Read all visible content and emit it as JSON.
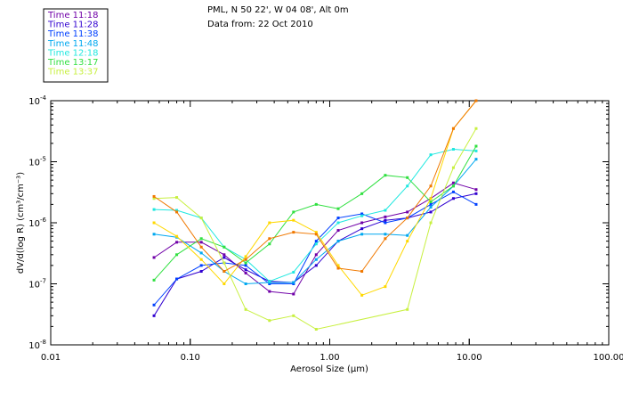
{
  "chart_data": {
    "type": "line",
    "title": "PML, N 50 22', W 04 08', Alt 0m",
    "subtitle": "Data from: 22 Oct 2010",
    "xlabel": "Aerosol Size (µm)",
    "ylabel": "dV/d(log R)  (cm³/cm⁻³)",
    "x_scale": "log",
    "y_scale": "log",
    "xlim": [
      0.01,
      100
    ],
    "ylim": [
      1e-08,
      0.0001
    ],
    "x_ticks": [
      {
        "value": 0.01,
        "label": "0.01"
      },
      {
        "value": 0.1,
        "label": "0.10"
      },
      {
        "value": 1,
        "label": "1.00"
      },
      {
        "value": 10,
        "label": "10.00"
      },
      {
        "value": 100,
        "label": "100.00"
      }
    ],
    "y_ticks": [
      {
        "value": 1e-08,
        "base": "10",
        "exp": "-8"
      },
      {
        "value": 1e-07,
        "base": "10",
        "exp": "-7"
      },
      {
        "value": 1e-06,
        "base": "10",
        "exp": "-6"
      },
      {
        "value": 1e-05,
        "base": "10",
        "exp": "-5"
      },
      {
        "value": 0.0001,
        "base": "10",
        "exp": "-4"
      }
    ],
    "grid": false,
    "legend_position": "top-left",
    "series": [
      {
        "name": "Time 11:18",
        "color": "#7000a8",
        "x": [
          0.055,
          0.08,
          0.12,
          0.175,
          0.25,
          0.37,
          0.55,
          0.8,
          1.15,
          1.7,
          2.5,
          3.6,
          5.3,
          7.7,
          11.2
        ],
        "y": [
          2.7e-07,
          4.8e-07,
          4.8e-07,
          3e-07,
          1.5e-07,
          7.5e-08,
          6.8e-08,
          3e-07,
          7.5e-07,
          1e-06,
          1.25e-06,
          1.5e-06,
          2.5e-06,
          4.5e-06,
          3.5e-06
        ]
      },
      {
        "name": "Time 11:28",
        "color": "#3000d0",
        "x": [
          0.055,
          0.08,
          0.12,
          0.175,
          0.25,
          0.37,
          0.55,
          0.8,
          1.15,
          1.7,
          2.5,
          3.6,
          5.3,
          7.7,
          11.2
        ],
        "y": [
          3e-08,
          1.2e-07,
          1.6e-07,
          2.7e-07,
          1.7e-07,
          1.1e-07,
          1.05e-07,
          2e-07,
          5e-07,
          8e-07,
          1.1e-06,
          1.2e-06,
          1.5e-06,
          2.5e-06,
          3e-06
        ]
      },
      {
        "name": "Time 11:38",
        "color": "#0040ff",
        "x": [
          0.055,
          0.08,
          0.12,
          0.175,
          0.25,
          0.37,
          0.55,
          0.8,
          1.15,
          1.7,
          2.5,
          3.6,
          5.3,
          7.7,
          11.2
        ],
        "y": [
          4.5e-08,
          1.2e-07,
          2e-07,
          2.2e-07,
          2e-07,
          1e-07,
          1e-07,
          5e-07,
          1.2e-06,
          1.4e-06,
          1e-06,
          1.2e-06,
          2e-06,
          3.2e-06,
          2e-06
        ]
      },
      {
        "name": "Time 11:48",
        "color": "#00a8f0",
        "x": [
          0.055,
          0.08,
          0.12,
          0.175,
          0.25,
          0.37,
          0.55,
          0.8,
          1.15,
          1.7,
          2.5,
          3.6,
          5.3,
          7.7,
          11.2
        ],
        "y": [
          6.5e-07,
          5.8e-07,
          3.2e-07,
          1.6e-07,
          1e-07,
          1.05e-07,
          1.05e-07,
          2.5e-07,
          5e-07,
          6.5e-07,
          6.5e-07,
          6.2e-07,
          1.8e-06,
          4e-06,
          1.1e-05
        ]
      },
      {
        "name": "Time 12:18",
        "color": "#20e8e0",
        "x": [
          0.055,
          0.08,
          0.12,
          0.175,
          0.25,
          0.37,
          0.55,
          0.8,
          1.15,
          1.7,
          2.5,
          3.6,
          5.3,
          7.7,
          11.2
        ],
        "y": [
          1.65e-06,
          1.6e-06,
          1.2e-06,
          4e-07,
          2.5e-07,
          1.1e-07,
          1.55e-07,
          4.5e-07,
          1e-06,
          1.3e-06,
          1.6e-06,
          4e-06,
          1.3e-05,
          1.6e-05,
          1.5e-05
        ]
      },
      {
        "name": "Time 13:17",
        "color": "#30e040",
        "x": [
          0.055,
          0.08,
          0.12,
          0.175,
          0.25,
          0.37,
          0.55,
          0.8,
          1.15,
          1.7,
          2.5,
          3.6,
          5.3,
          7.7,
          11.2
        ],
        "y": [
          1.15e-07,
          3e-07,
          5.5e-07,
          4e-07,
          2.2e-07,
          4.5e-07,
          1.5e-06,
          2e-06,
          1.7e-06,
          3e-06,
          6e-06,
          5.5e-06,
          2.2e-06,
          4e-06,
          1.8e-05
        ]
      },
      {
        "name": "Time 13:37",
        "color": "#c8f040",
        "x": [
          0.055,
          0.08,
          0.12,
          0.175,
          0.25,
          0.37,
          0.55,
          0.8,
          3.6,
          5.3,
          7.7,
          11.2
        ],
        "y": [
          2.5e-06,
          2.6e-06,
          1.2e-06,
          2.2e-07,
          3.8e-08,
          2.5e-08,
          3e-08,
          1.8e-08,
          3.8e-08,
          1e-06,
          8e-06,
          3.5e-05
        ]
      },
      {
        "name": "",
        "color": "#ffd800",
        "x": [
          0.055,
          0.08,
          0.12,
          0.175,
          0.25,
          0.37,
          0.55,
          0.8,
          1.15,
          1.7,
          2.5,
          3.6,
          5.3,
          7.7,
          11.2
        ],
        "y": [
          1e-06,
          6e-07,
          2.5e-07,
          1e-07,
          2.8e-07,
          1e-06,
          1.1e-06,
          7e-07,
          2e-07,
          6.5e-08,
          9e-08,
          5e-07,
          2.5e-06,
          3.5e-05,
          0.0001
        ]
      },
      {
        "name": "",
        "color": "#f07800",
        "x": [
          0.055,
          0.08,
          0.12,
          0.175,
          0.25,
          0.37,
          0.55,
          0.8,
          1.15,
          1.7,
          2.5,
          3.6,
          5.3,
          7.7,
          11.2
        ],
        "y": [
          2.7e-06,
          1.5e-06,
          4e-07,
          1.6e-07,
          2.5e-07,
          5.5e-07,
          7e-07,
          6.5e-07,
          1.8e-07,
          1.6e-07,
          5.5e-07,
          1.2e-06,
          4e-06,
          3.5e-05,
          0.0001
        ]
      }
    ]
  }
}
